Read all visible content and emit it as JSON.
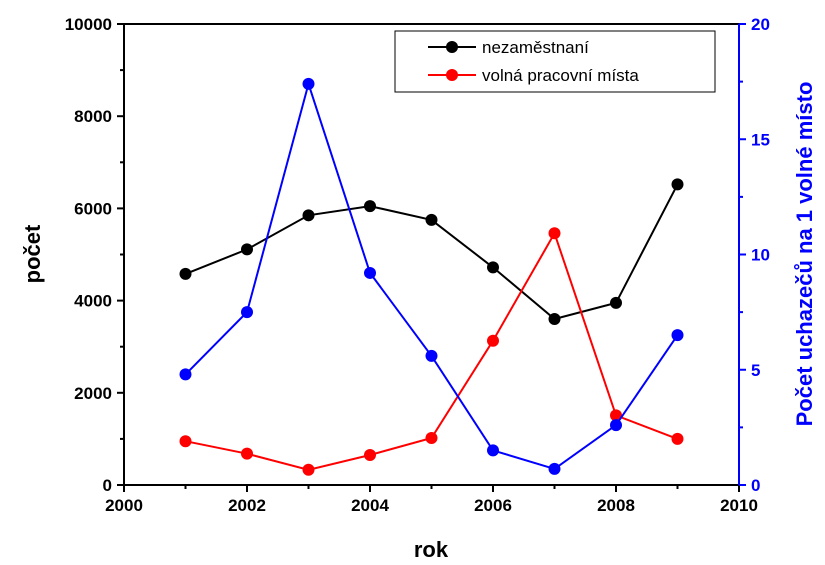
{
  "chart_data": {
    "type": "line",
    "xlabel": "rok",
    "ylabel": "počet",
    "y2label": "Počet uchazečů na 1 volné místo",
    "xlim": [
      2000,
      2010
    ],
    "ylim": [
      0,
      10000
    ],
    "y2lim": [
      0,
      20
    ],
    "x_ticks": [
      "2000",
      "2002",
      "2004",
      "2006",
      "2008",
      "2010"
    ],
    "y_ticks": [
      "0",
      "2000",
      "4000",
      "6000",
      "8000",
      "10000"
    ],
    "y2_ticks": [
      "0",
      "5",
      "10",
      "15",
      "20"
    ],
    "x": [
      2001,
      2002,
      2003,
      2004,
      2005,
      2006,
      2007,
      2008,
      2009
    ],
    "legend_position": "top-right",
    "series": [
      {
        "name": "nezaměstnaní",
        "axis": "left",
        "color": "#000000",
        "values": [
          4580,
          5110,
          5850,
          6050,
          5750,
          4720,
          3600,
          3950,
          6520
        ]
      },
      {
        "name": "volná pracovní místa",
        "axis": "left",
        "color": "#ff0000",
        "values": [
          950,
          680,
          330,
          650,
          1020,
          3130,
          5460,
          1510,
          1000
        ]
      },
      {
        "axis": "right",
        "color": "#0000ff",
        "values": [
          4.8,
          7.5,
          17.4,
          9.2,
          5.6,
          1.5,
          0.7,
          2.6,
          6.5
        ]
      }
    ]
  }
}
